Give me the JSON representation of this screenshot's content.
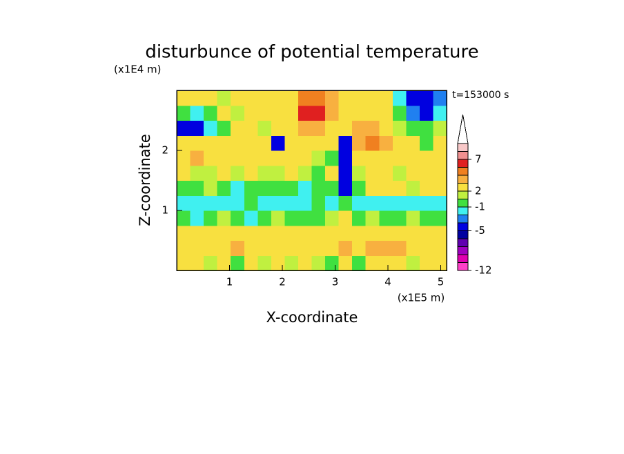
{
  "chart_data": {
    "type": "contour",
    "title": "disturbunce of potential temperature",
    "y_unit_label": "(x1E4 m)",
    "x_unit_label": "(x1E5 m)",
    "time_label": "t=153000 s",
    "xlabel": "X-coordinate",
    "ylabel": "Z-coordinate",
    "xlim": [
      0,
      5.11
    ],
    "ylim": [
      0,
      3
    ],
    "xticks": [
      1,
      2,
      3,
      4,
      5
    ],
    "yticks": [
      1,
      2
    ],
    "field": {
      "values": [
        [
          2,
          2,
          1,
          2,
          0,
          2,
          1,
          2,
          1,
          2,
          1,
          0,
          2,
          0,
          2,
          2,
          2,
          1,
          2,
          2
        ],
        [
          3,
          2.5,
          3,
          3,
          4,
          3,
          2.5,
          2.5,
          3,
          3,
          2.5,
          2.5,
          4,
          3,
          4,
          4,
          4,
          3,
          3,
          2.5
        ],
        [
          2.5,
          2.5,
          3,
          2.5,
          2.5,
          2.5,
          2.5,
          2.5,
          2,
          2,
          2.5,
          2.5,
          3,
          2.5,
          3,
          3,
          3,
          2.5,
          2.5,
          2.5
        ],
        [
          0,
          -1.5,
          0,
          1,
          0,
          -1.5,
          0,
          1,
          0,
          0,
          0,
          1,
          2,
          0,
          1,
          0,
          0,
          1,
          0,
          0
        ],
        [
          -1.5,
          -1.5,
          -1.5,
          -1.5,
          -1.5,
          -0.5,
          -1.5,
          -1.5,
          -1.5,
          -1.5,
          -0.5,
          -1.5,
          0,
          -1.5,
          -1.5,
          -1.5,
          -1.5,
          -1.5,
          -1.5,
          -1.5
        ],
        [
          0,
          0,
          1,
          0,
          -1.5,
          0,
          -0.5,
          0,
          0,
          -1.5,
          0,
          0,
          -4,
          0,
          2,
          2.5,
          2,
          1,
          2,
          2
        ],
        [
          2,
          1,
          1,
          2,
          1,
          2,
          1,
          1,
          2,
          1,
          0,
          2,
          -4,
          1,
          2,
          2,
          1,
          2,
          2,
          2
        ],
        [
          3,
          4,
          3,
          2.5,
          2,
          2.5,
          2,
          2.5,
          2,
          2,
          1,
          0,
          -5,
          2,
          2.5,
          3,
          2.5,
          2,
          2.5,
          2
        ],
        [
          2.5,
          3,
          2.5,
          2,
          2,
          2.5,
          2,
          -4,
          2,
          3,
          2.5,
          2,
          -4,
          4,
          5,
          4,
          2,
          2,
          0,
          2
        ],
        [
          -4,
          -4,
          -1.5,
          0,
          2,
          2,
          1,
          2,
          2.5,
          4,
          4,
          2,
          3,
          4,
          4,
          3,
          1,
          0,
          0,
          1
        ],
        [
          0,
          -1.5,
          0,
          2,
          1,
          2,
          2.5,
          2,
          3,
          6,
          6,
          4,
          3,
          2,
          2.5,
          2,
          0,
          -3,
          -4,
          -1.5
        ],
        [
          2,
          2,
          2.5,
          1,
          2,
          2.5,
          2,
          2,
          3,
          5,
          5,
          4,
          3,
          2.5,
          2,
          2,
          -1.5,
          -4,
          -5,
          -3
        ]
      ]
    },
    "colorbar": {
      "colors": [
        "#ff40c8",
        "#e000b0",
        "#a000c0",
        "#6000b0",
        "#0000a0",
        "#0000e0",
        "#2080f0",
        "#40f0f0",
        "#40e040",
        "#c0f040",
        "#f8e040",
        "#f8b040",
        "#f08020",
        "#e02020",
        "#f09090",
        "#f8c8c8"
      ],
      "over_color": "#ffffff",
      "levels": [
        -12,
        null,
        null,
        null,
        null,
        -5,
        null,
        null,
        -1,
        null,
        2,
        null,
        null,
        null,
        7,
        null,
        null
      ]
    }
  }
}
